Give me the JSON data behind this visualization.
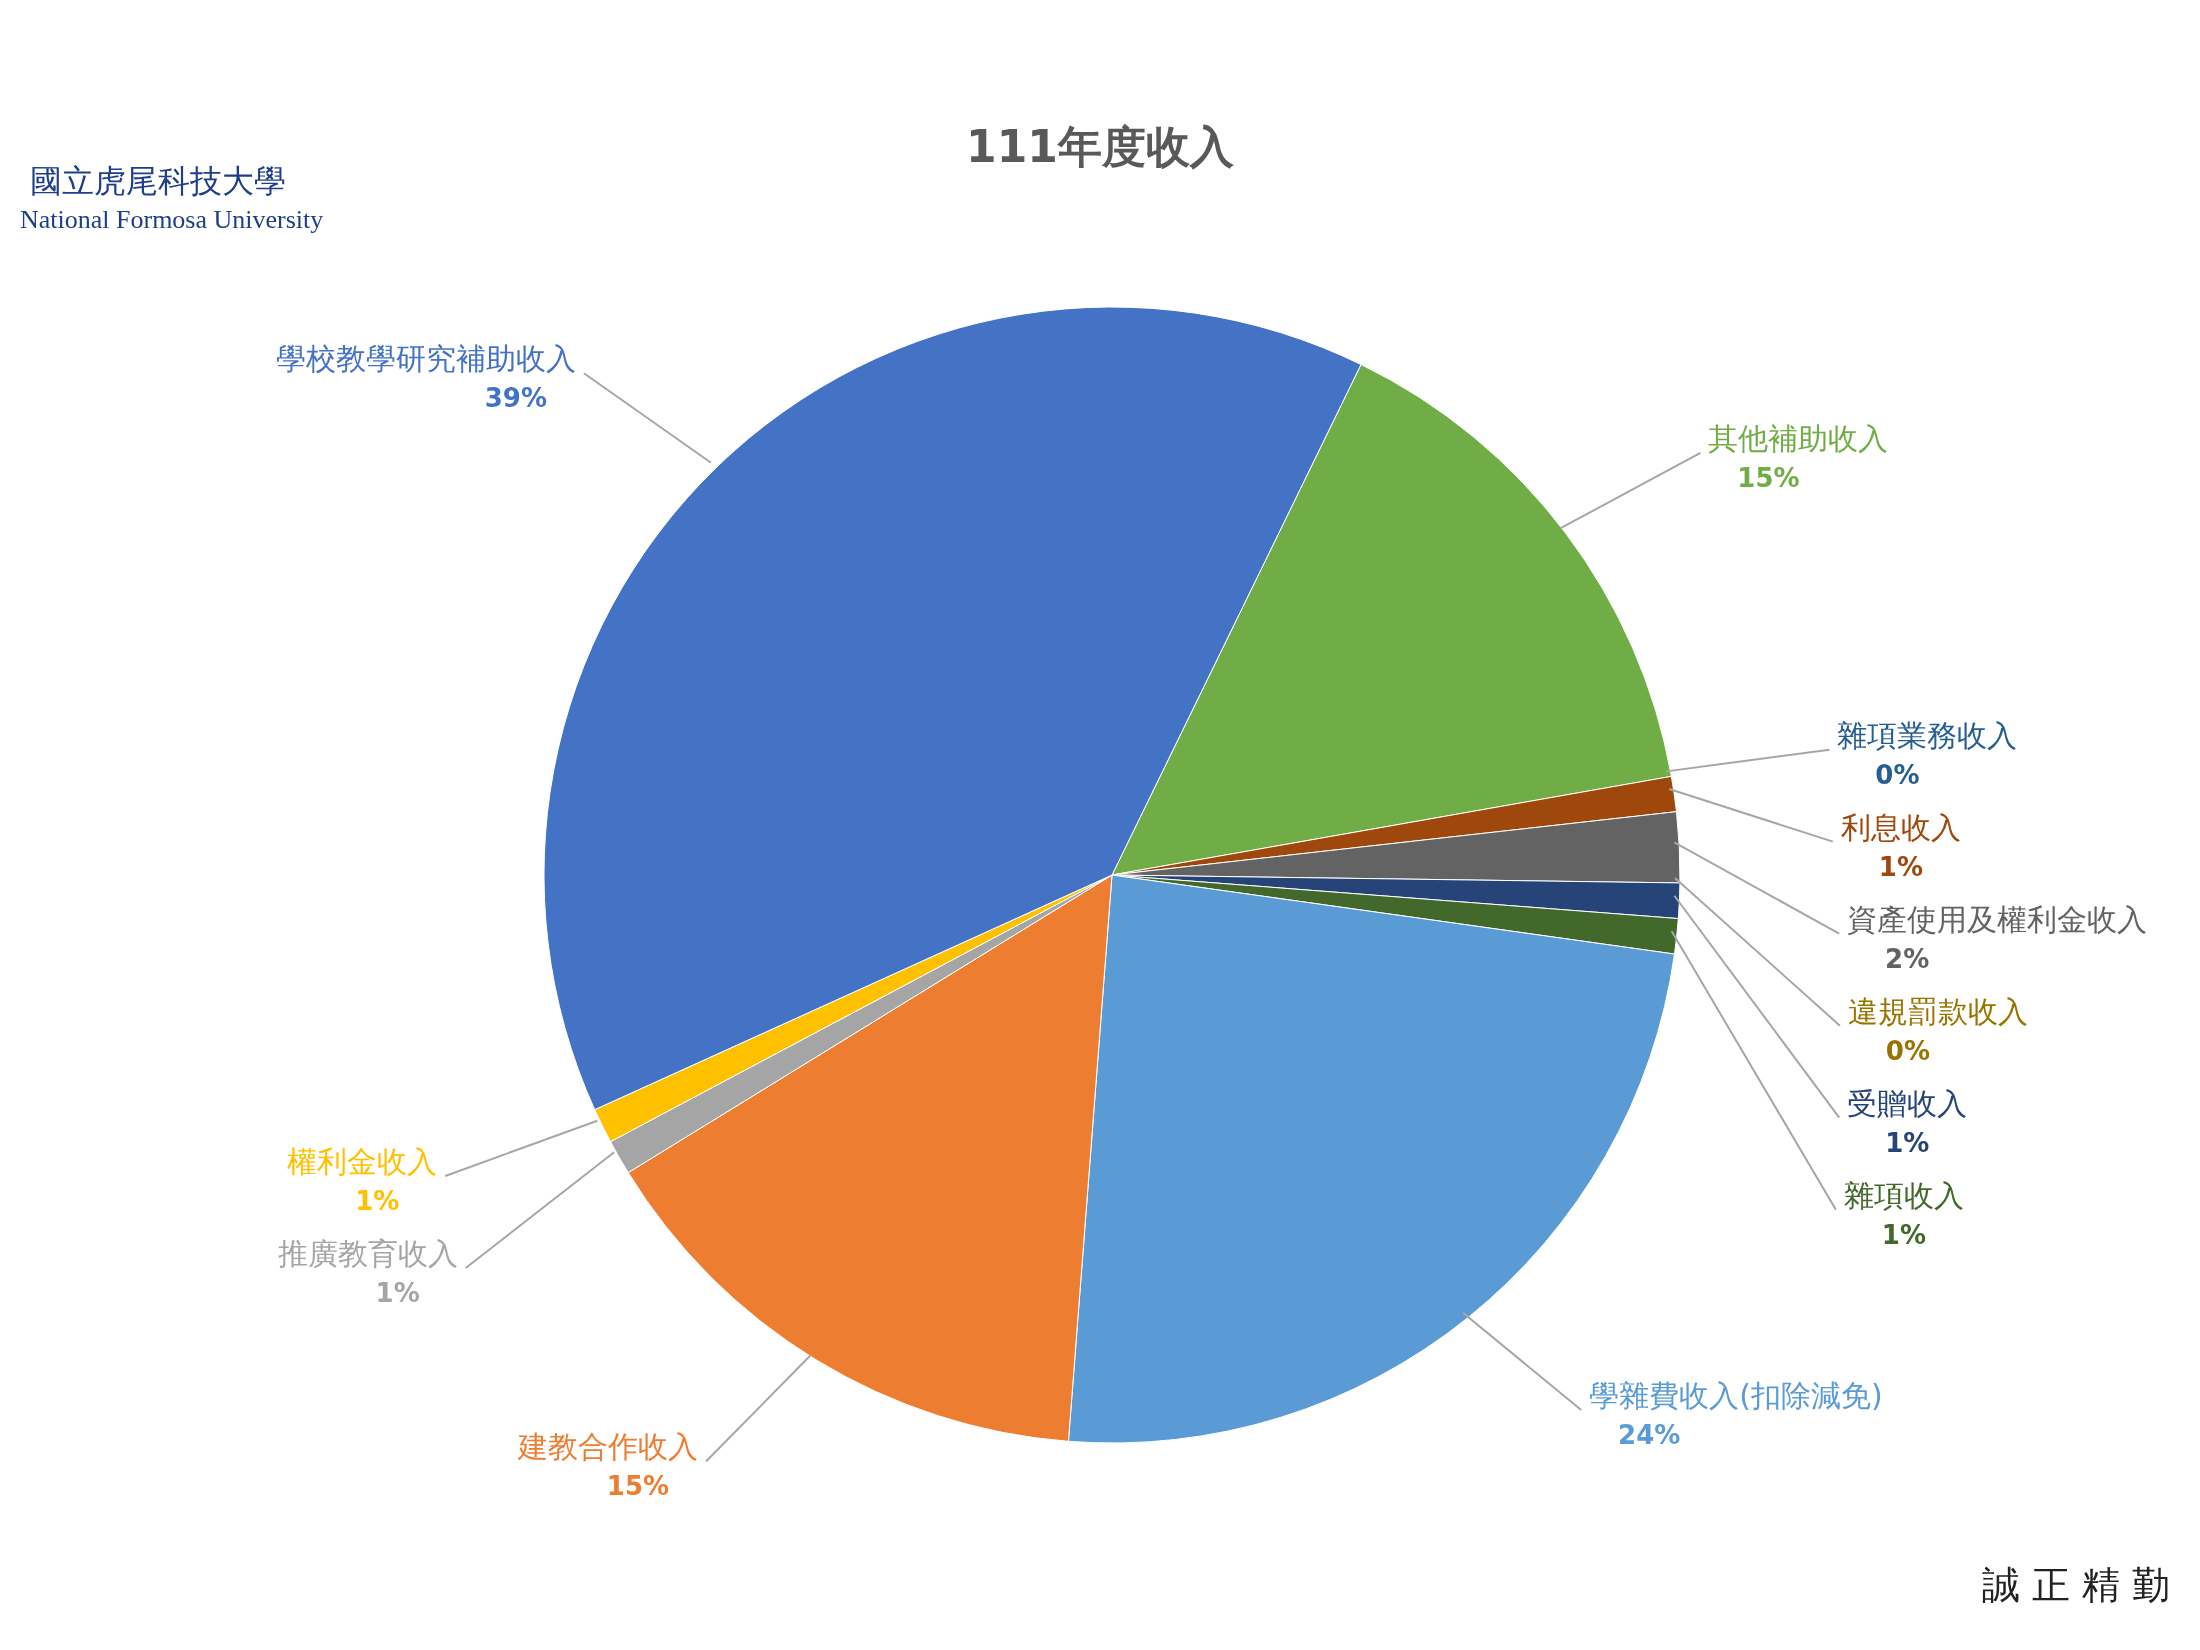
{
  "chart_data": {
    "type": "pie",
    "title": "111年度收入",
    "categories": [
      "其他補助收入",
      "雜項業務收入",
      "利息收入",
      "資產使用及權利金收入",
      "違規罰款收入",
      "受贈收入",
      "雜項收入",
      "學雜費收入(扣除減免)",
      "建教合作收入",
      "推廣教育收入",
      "權利金收入",
      "學校教學研究補助收入"
    ],
    "values": [
      15,
      0,
      1,
      2,
      0,
      1,
      1,
      24,
      15,
      1,
      1,
      39
    ],
    "value_labels": [
      "15%",
      "0%",
      "1%",
      "2%",
      "0%",
      "1%",
      "1%",
      "24%",
      "15%",
      "1%",
      "1%",
      "39%"
    ],
    "colors": [
      "#70ad47",
      "#255e91",
      "#9e480e",
      "#636363",
      "#997300",
      "#264478",
      "#43682b",
      "#5b9bd5",
      "#ed7d31",
      "#a5a5a5",
      "#ffc000",
      "#4472c4"
    ],
    "annotations": [
      "國立虎尾科技大學",
      "National Formosa University",
      "誠 正 精 勤"
    ]
  }
}
